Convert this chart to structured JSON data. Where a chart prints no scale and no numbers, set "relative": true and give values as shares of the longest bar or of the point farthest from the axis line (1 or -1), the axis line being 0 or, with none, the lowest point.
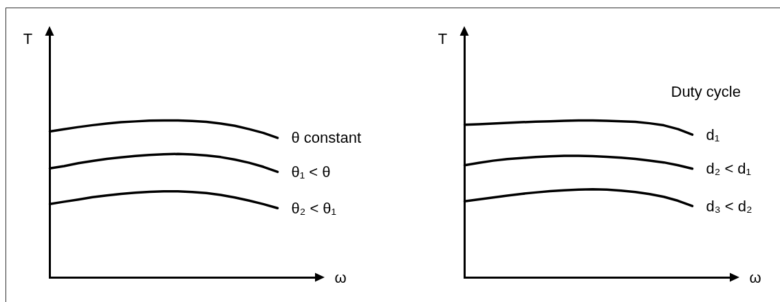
{
  "chart_data": [
    {
      "type": "line",
      "relative": true,
      "xlabel": "ω",
      "ylabel": "T",
      "categories": [
        null,
        null,
        null,
        null,
        null,
        null,
        null,
        null,
        null,
        null,
        null,
        null,
        null,
        null,
        null,
        null,
        null
      ],
      "series": [
        {
          "name": "θ constant",
          "color": "#000000",
          "values": [
            0.93,
            0.944,
            0.958,
            0.97,
            0.98,
            0.989,
            0.994,
            0.999,
            1.0,
            1.0,
            0.997,
            0.991,
            0.98,
            0.966,
            0.945,
            0.921,
            0.889
          ]
        },
        {
          "name": "θ₁ < θ",
          "color": "#000000",
          "values": [
            0.695,
            0.71,
            0.728,
            0.742,
            0.755,
            0.765,
            0.774,
            0.781,
            0.785,
            0.787,
            0.784,
            0.777,
            0.767,
            0.751,
            0.731,
            0.705,
            0.673
          ]
        },
        {
          "name": "θ₂ < θ₁",
          "color": "#000000",
          "values": [
            0.468,
            0.483,
            0.497,
            0.512,
            0.523,
            0.533,
            0.54,
            0.546,
            0.549,
            0.549,
            0.545,
            0.538,
            0.526,
            0.51,
            0.49,
            0.468,
            0.442
          ]
        }
      ]
    },
    {
      "type": "line",
      "relative": true,
      "xlabel": "ω",
      "ylabel": "T",
      "annotations": [
        "Duty cycle"
      ],
      "categories": [
        null,
        null,
        null,
        null,
        null,
        null,
        null,
        null,
        null,
        null,
        null,
        null,
        null,
        null,
        null,
        null,
        null
      ],
      "series": [
        {
          "name": "d₁",
          "color": "#000000",
          "values": [
            0.973,
            0.976,
            0.98,
            0.985,
            0.989,
            0.992,
            0.995,
            0.998,
            1.0,
            1.0,
            0.998,
            0.995,
            0.991,
            0.982,
            0.969,
            0.945,
            0.91
          ]
        },
        {
          "name": "d₂ < d₁",
          "color": "#000000",
          "values": [
            0.715,
            0.73,
            0.744,
            0.754,
            0.761,
            0.767,
            0.772,
            0.775,
            0.775,
            0.773,
            0.769,
            0.763,
            0.755,
            0.745,
            0.733,
            0.715,
            0.693
          ]
        },
        {
          "name": "d₃ < d₂",
          "color": "#000000",
          "values": [
            0.486,
            0.498,
            0.51,
            0.522,
            0.533,
            0.542,
            0.55,
            0.556,
            0.56,
            0.562,
            0.56,
            0.554,
            0.545,
            0.532,
            0.514,
            0.489,
            0.456
          ]
        }
      ]
    }
  ]
}
